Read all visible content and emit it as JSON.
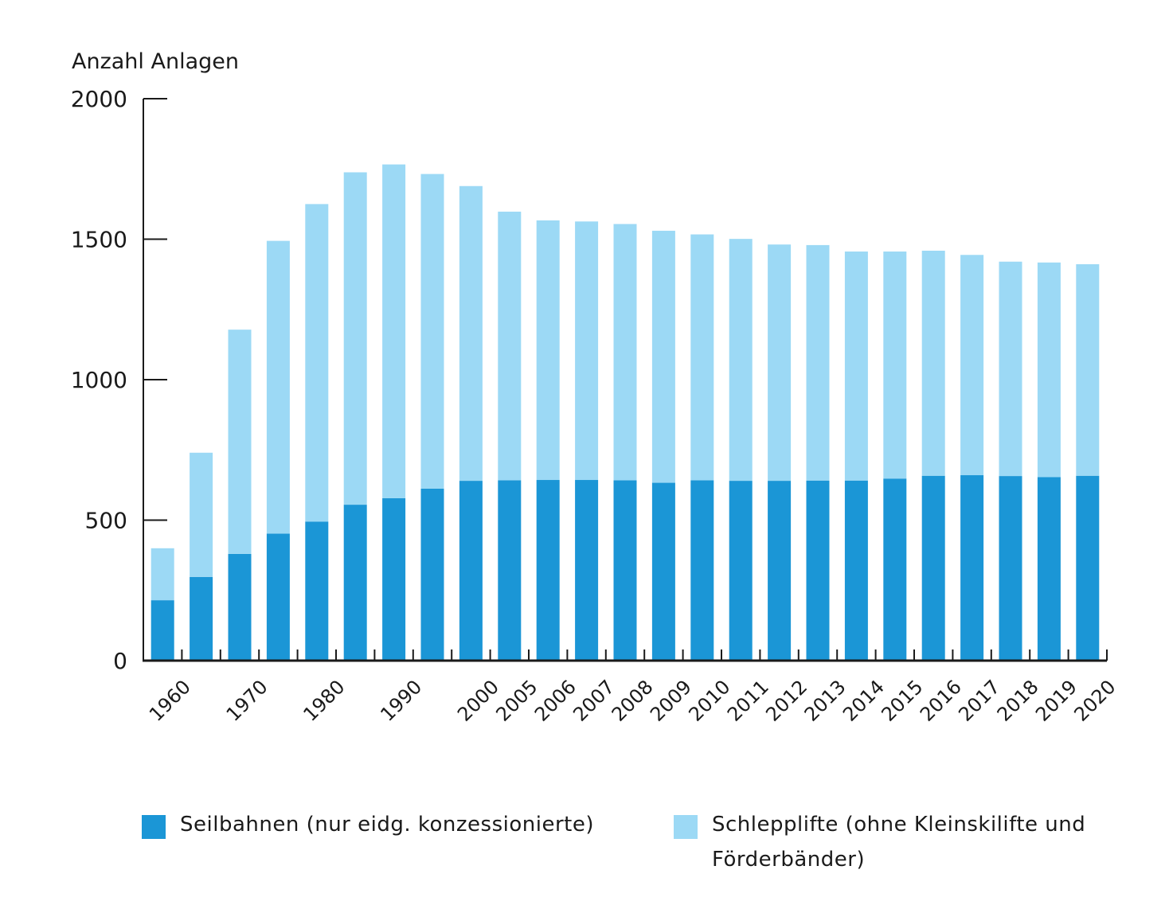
{
  "chart_data": {
    "type": "bar",
    "stacked": true,
    "ylabel": "Anzahl Anlagen",
    "ylim": [
      0,
      2000
    ],
    "yticks": [
      0,
      500,
      1000,
      1500,
      2000
    ],
    "categories": [
      "1960",
      "",
      "1970",
      "",
      "1980",
      "",
      "1990",
      "",
      "2000",
      "2005",
      "2006",
      "2007",
      "2008",
      "2009",
      "2010",
      "2011",
      "2012",
      "2013",
      "2014",
      "2015",
      "2016",
      "2017",
      "2018",
      "2019",
      "2020"
    ],
    "series": [
      {
        "name": "Seilbahnen (nur eidg. konzessionierte)",
        "color": "#1b96d6",
        "values": [
          215,
          298,
          380,
          452,
          495,
          555,
          578,
          612,
          640,
          642,
          643,
          643,
          642,
          633,
          642,
          640,
          640,
          641,
          641,
          648,
          658,
          660,
          657,
          653,
          658
        ]
      },
      {
        "name": "Schlepplifte (ohne Kleinskilifte und Förderbänder)",
        "color": "#9cd9f5",
        "values": [
          185,
          442,
          798,
          1042,
          1130,
          1183,
          1188,
          1120,
          1049,
          956,
          924,
          920,
          912,
          897,
          875,
          861,
          841,
          838,
          815,
          808,
          801,
          784,
          763,
          764,
          753
        ]
      }
    ]
  },
  "legend": {
    "items": [
      {
        "label": "Seilbahnen (nur eidg. konzessionierte)",
        "color": "#1b96d6"
      },
      {
        "label": "Schlepplifte (ohne Kleinskilifte und Förderbänder)",
        "color": "#9cd9f5"
      }
    ]
  }
}
